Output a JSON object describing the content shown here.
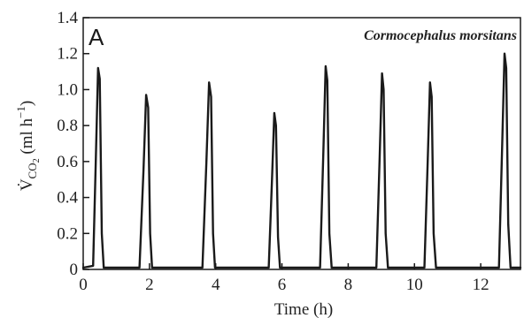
{
  "chart_data": {
    "type": "line",
    "panel_label": "A",
    "annotation": "Cormocephalus morsitans",
    "xlabel": "Time (h)",
    "ylabel_main": "V̇",
    "ylabel_sub": "CO",
    "ylabel_subsub": "2",
    "ylabel_units": " (ml h",
    "ylabel_exp": "−1",
    "ylabel_close": ")",
    "xlim": [
      0,
      13.2
    ],
    "ylim": [
      0,
      1.4
    ],
    "xticks": [
      0,
      2,
      4,
      6,
      8,
      10,
      12
    ],
    "xtick_labels": [
      "0",
      "2",
      "4",
      "6",
      "8",
      "10",
      "12"
    ],
    "yticks": [
      0,
      0.2,
      0.4,
      0.6,
      0.8,
      1.0,
      1.2,
      1.4
    ],
    "ytick_labels": [
      "0",
      "0.2",
      "0.4",
      "0.6",
      "0.8",
      "1.0",
      "1.2",
      "1.4"
    ],
    "baseline": 0.01,
    "series": [
      {
        "x": [
          0,
          0.3,
          0.38,
          0.45,
          0.5,
          0.56,
          0.62,
          1.7,
          1.82,
          1.9,
          1.96,
          2.02,
          2.08,
          3.6,
          3.72,
          3.8,
          3.86,
          3.92,
          3.98,
          5.6,
          5.7,
          5.77,
          5.82,
          5.88,
          5.94,
          7.15,
          7.25,
          7.32,
          7.37,
          7.43,
          7.5,
          8.85,
          8.95,
          9.02,
          9.07,
          9.13,
          9.2,
          10.3,
          10.4,
          10.47,
          10.52,
          10.58,
          10.65,
          12.55,
          12.65,
          12.72,
          12.77,
          12.83,
          12.9,
          13.2
        ],
        "y": [
          0.01,
          0.02,
          0.6,
          1.12,
          1.06,
          0.2,
          0.01,
          0.01,
          0.55,
          0.97,
          0.9,
          0.2,
          0.01,
          0.01,
          0.6,
          1.04,
          0.96,
          0.2,
          0.01,
          0.01,
          0.5,
          0.87,
          0.8,
          0.18,
          0.01,
          0.01,
          0.65,
          1.13,
          1.05,
          0.2,
          0.01,
          0.01,
          0.62,
          1.09,
          1.0,
          0.2,
          0.01,
          0.01,
          0.6,
          1.04,
          0.96,
          0.2,
          0.01,
          0.01,
          0.7,
          1.2,
          1.12,
          0.25,
          0.01,
          0.01
        ]
      }
    ],
    "peaks": [
      {
        "x": 0.45,
        "y": 1.12
      },
      {
        "x": 1.9,
        "y": 0.97
      },
      {
        "x": 3.8,
        "y": 1.04
      },
      {
        "x": 5.77,
        "y": 0.87
      },
      {
        "x": 7.32,
        "y": 1.13
      },
      {
        "x": 9.02,
        "y": 1.09
      },
      {
        "x": 10.47,
        "y": 1.04
      },
      {
        "x": 12.72,
        "y": 1.2
      }
    ],
    "grid": false,
    "colors": {
      "line": "#1a1a1a",
      "axis": "#1a1a1a",
      "text": "#222222"
    }
  }
}
